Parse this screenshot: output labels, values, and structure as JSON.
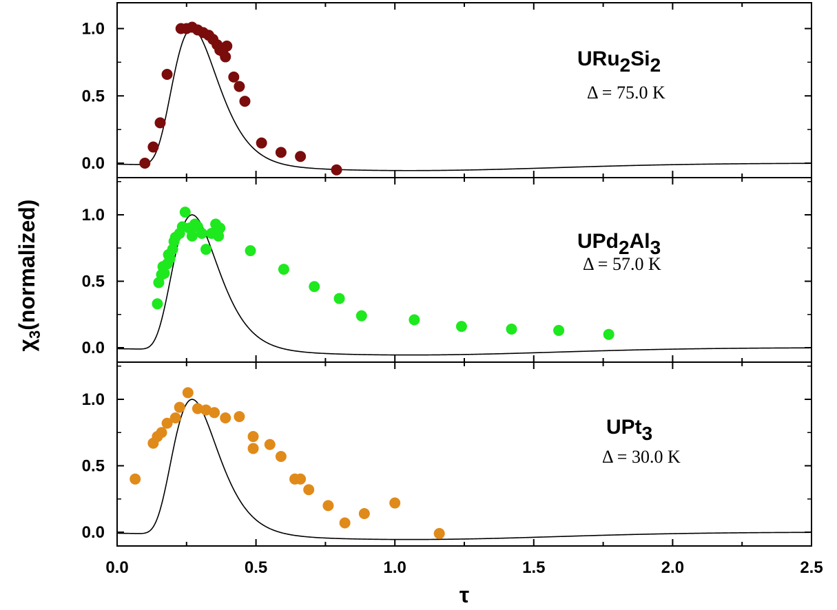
{
  "chart_data": {
    "type": "scatter",
    "title": "",
    "xlabel": "τ",
    "ylabel": {
      "main": "χ",
      "sub": "3",
      "rest": "(normalized)"
    },
    "xlim": [
      0,
      2.5
    ],
    "ylim": [
      -0.12,
      1.22
    ],
    "x_ticks": [
      0.0,
      0.5,
      1.0,
      1.5,
      2.0,
      2.5
    ],
    "x_tick_labels": [
      "0.0",
      "0.5",
      "1.0",
      "1.5",
      "2.0",
      "2.5"
    ],
    "y_ticks": [
      0.0,
      0.5,
      1.0
    ],
    "y_tick_labels": [
      "0.0",
      "0.5",
      "1.0"
    ],
    "grid": false,
    "panels": [
      {
        "name": {
          "parts": [
            "URu",
            "2",
            "Si",
            "2"
          ]
        },
        "delta_label": "Δ = 75.0 K",
        "color": "#7a0c0c",
        "points": [
          [
            0.1,
            0.0
          ],
          [
            0.13,
            0.12
          ],
          [
            0.155,
            0.3
          ],
          [
            0.18,
            0.66
          ],
          [
            0.23,
            1.0
          ],
          [
            0.25,
            1.0
          ],
          [
            0.27,
            1.01
          ],
          [
            0.29,
            0.99
          ],
          [
            0.31,
            0.97
          ],
          [
            0.33,
            0.95
          ],
          [
            0.345,
            0.92
          ],
          [
            0.36,
            0.88
          ],
          [
            0.37,
            0.84
          ],
          [
            0.38,
            0.83
          ],
          [
            0.39,
            0.79
          ],
          [
            0.395,
            0.87
          ],
          [
            0.42,
            0.64
          ],
          [
            0.44,
            0.57
          ],
          [
            0.46,
            0.46
          ],
          [
            0.52,
            0.15
          ],
          [
            0.59,
            0.08
          ],
          [
            0.66,
            0.05
          ],
          [
            0.79,
            -0.05
          ]
        ]
      },
      {
        "name": {
          "parts": [
            "UPd",
            "2",
            "Al",
            "3"
          ]
        },
        "delta_label": "Δ = 57.0 K",
        "color": "#1ee81e",
        "points": [
          [
            0.145,
            0.33
          ],
          [
            0.15,
            0.49
          ],
          [
            0.16,
            0.55
          ],
          [
            0.165,
            0.61
          ],
          [
            0.17,
            0.56
          ],
          [
            0.18,
            0.63
          ],
          [
            0.185,
            0.7
          ],
          [
            0.19,
            0.67
          ],
          [
            0.2,
            0.74
          ],
          [
            0.205,
            0.8
          ],
          [
            0.21,
            0.83
          ],
          [
            0.225,
            0.86
          ],
          [
            0.235,
            0.91
          ],
          [
            0.245,
            1.02
          ],
          [
            0.26,
            0.9
          ],
          [
            0.27,
            0.84
          ],
          [
            0.28,
            0.93
          ],
          [
            0.29,
            0.91
          ],
          [
            0.305,
            0.86
          ],
          [
            0.32,
            0.74
          ],
          [
            0.34,
            0.86
          ],
          [
            0.355,
            0.93
          ],
          [
            0.365,
            0.84
          ],
          [
            0.37,
            0.9
          ],
          [
            0.48,
            0.73
          ],
          [
            0.6,
            0.59
          ],
          [
            0.71,
            0.46
          ],
          [
            0.8,
            0.37
          ],
          [
            0.88,
            0.24
          ],
          [
            1.07,
            0.21
          ],
          [
            1.24,
            0.16
          ],
          [
            1.42,
            0.14
          ],
          [
            1.59,
            0.13
          ],
          [
            1.77,
            0.1
          ]
        ]
      },
      {
        "name": {
          "parts": [
            "UPt",
            "3"
          ]
        },
        "delta_label": "Δ = 30.0 K",
        "color": "#e08a1a",
        "points": [
          [
            0.065,
            0.4
          ],
          [
            0.13,
            0.67
          ],
          [
            0.145,
            0.72
          ],
          [
            0.16,
            0.75
          ],
          [
            0.18,
            0.82
          ],
          [
            0.21,
            0.86
          ],
          [
            0.225,
            0.94
          ],
          [
            0.255,
            1.05
          ],
          [
            0.29,
            0.93
          ],
          [
            0.32,
            0.92
          ],
          [
            0.35,
            0.9
          ],
          [
            0.39,
            0.86
          ],
          [
            0.44,
            0.87
          ],
          [
            0.49,
            0.72
          ],
          [
            0.49,
            0.63
          ],
          [
            0.55,
            0.66
          ],
          [
            0.59,
            0.57
          ],
          [
            0.64,
            0.4
          ],
          [
            0.66,
            0.4
          ],
          [
            0.69,
            0.32
          ],
          [
            0.76,
            0.2
          ],
          [
            0.82,
            0.07
          ],
          [
            0.89,
            0.14
          ],
          [
            1.0,
            0.22
          ],
          [
            1.16,
            -0.01
          ]
        ]
      }
    ]
  }
}
